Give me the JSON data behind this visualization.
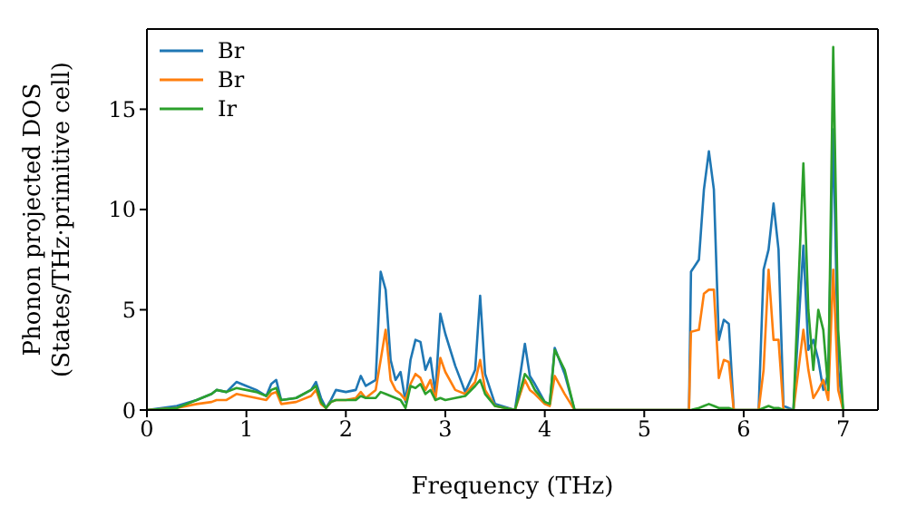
{
  "chart_data": {
    "type": "line",
    "xlabel": "Frequency (THz)",
    "ylabel": "Phonon projected DOS\n(States/THz·primitive cell)",
    "x": [
      0,
      0.3,
      0.5,
      0.65,
      0.7,
      0.8,
      0.9,
      1.0,
      1.1,
      1.2,
      1.25,
      1.3,
      1.35,
      1.5,
      1.65,
      1.7,
      1.75,
      1.8,
      1.85,
      1.9,
      2.0,
      2.1,
      2.15,
      2.2,
      2.3,
      2.35,
      2.4,
      2.45,
      2.5,
      2.55,
      2.6,
      2.65,
      2.7,
      2.75,
      2.8,
      2.85,
      2.9,
      2.95,
      3.0,
      3.1,
      3.2,
      3.3,
      3.35,
      3.4,
      3.5,
      3.7,
      3.8,
      3.85,
      3.9,
      4.0,
      4.05,
      4.1,
      4.2,
      4.3,
      5.45,
      5.47,
      5.55,
      5.6,
      5.65,
      5.7,
      5.75,
      5.8,
      5.85,
      5.9,
      6.15,
      6.2,
      6.25,
      6.3,
      6.35,
      6.4,
      6.5,
      6.6,
      6.65,
      6.7,
      6.75,
      6.8,
      6.85,
      6.9,
      6.95,
      7.0
    ],
    "series": [
      {
        "name": "Br",
        "color": "#1f77b4",
        "values": [
          0,
          0.2,
          0.5,
          0.8,
          1.0,
          0.9,
          1.4,
          1.2,
          1.0,
          0.7,
          1.3,
          1.5,
          0.5,
          0.6,
          1.0,
          1.4,
          0.6,
          0.1,
          0.5,
          1.0,
          0.9,
          1.0,
          1.7,
          1.2,
          1.5,
          6.9,
          6.0,
          2.5,
          1.5,
          1.9,
          0.4,
          2.5,
          3.5,
          3.4,
          2.0,
          2.6,
          0.8,
          4.8,
          3.8,
          2.2,
          0.9,
          2.0,
          5.7,
          1.8,
          0.3,
          0,
          3.3,
          1.7,
          1.3,
          0.4,
          0.3,
          3.1,
          1.8,
          0,
          0,
          6.9,
          7.5,
          11.0,
          12.9,
          11.0,
          3.5,
          4.5,
          4.3,
          0,
          0,
          7.0,
          8.0,
          10.3,
          8.0,
          0.2,
          0,
          8.2,
          3.0,
          3.5,
          2.5,
          1.0,
          1.8,
          14.0,
          2.0,
          0
        ]
      },
      {
        "name": "Br",
        "color": "#ff7f0e",
        "values": [
          0,
          0.1,
          0.3,
          0.4,
          0.5,
          0.5,
          0.8,
          0.7,
          0.6,
          0.5,
          0.8,
          0.9,
          0.3,
          0.4,
          0.7,
          1.0,
          0.3,
          0.1,
          0.4,
          0.5,
          0.5,
          0.6,
          0.9,
          0.6,
          1.0,
          2.5,
          4.0,
          1.5,
          1.0,
          0.8,
          0.5,
          1.3,
          1.8,
          1.6,
          1.0,
          1.5,
          0.5,
          2.6,
          1.9,
          1.0,
          0.8,
          1.4,
          2.5,
          1.0,
          0.2,
          0,
          1.5,
          1.0,
          0.8,
          0.3,
          0.2,
          1.7,
          0.8,
          0,
          0,
          3.9,
          4.0,
          5.8,
          6.0,
          6.0,
          1.6,
          2.5,
          2.4,
          0,
          0,
          2.0,
          7.0,
          3.5,
          3.5,
          0,
          0,
          4.0,
          2.0,
          0.6,
          1.0,
          1.5,
          0.5,
          7.0,
          1.0,
          0
        ]
      },
      {
        "name": "Ir",
        "color": "#2ca02c",
        "values": [
          0,
          0.1,
          0.5,
          0.8,
          1.0,
          0.9,
          1.1,
          1.0,
          0.9,
          0.7,
          1.0,
          1.1,
          0.5,
          0.6,
          1.0,
          1.2,
          0.4,
          0.1,
          0.4,
          0.5,
          0.5,
          0.5,
          0.7,
          0.6,
          0.6,
          0.9,
          0.8,
          0.7,
          0.6,
          0.5,
          0.1,
          1.2,
          1.1,
          1.3,
          0.8,
          1.0,
          0.5,
          0.6,
          0.5,
          0.6,
          0.7,
          1.2,
          1.5,
          0.8,
          0.2,
          0,
          1.8,
          1.5,
          1.0,
          0.4,
          0.3,
          3.0,
          2.0,
          0,
          0,
          0,
          0.1,
          0.2,
          0.3,
          0.2,
          0.1,
          0.1,
          0.1,
          0,
          0,
          0.1,
          0.2,
          0.1,
          0.1,
          0,
          0,
          12.3,
          5.0,
          2.0,
          5.0,
          4.0,
          1.0,
          18.1,
          4.0,
          0
        ]
      }
    ],
    "xlim": [
      0,
      7.35
    ],
    "ylim": [
      0,
      19
    ],
    "xticks": [
      0,
      1,
      2,
      3,
      4,
      5,
      6,
      7
    ],
    "yticks": [
      0,
      5,
      10,
      15
    ],
    "legend": "top left",
    "grid": false,
    "marker": "none",
    "line_style": "solid"
  }
}
